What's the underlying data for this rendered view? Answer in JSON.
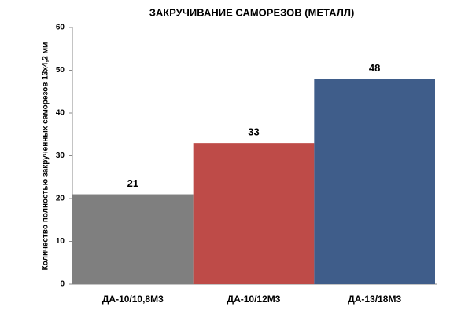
{
  "chart_data": {
    "type": "bar",
    "title": "ЗАКРУЧИВАНИЕ САМОРЕЗОВ (МЕТАЛЛ)",
    "y_label": "Количество полностью закрученных саморезов 13х4,2 мм",
    "categories": [
      "ДА-10/10,8М3",
      "ДА-10/12М3",
      "ДА-13/18М3"
    ],
    "values": [
      21,
      33,
      48
    ],
    "colors": [
      "#7f7f7f",
      "#be4b48",
      "#3f5d8a"
    ],
    "ylim": [
      0,
      60
    ],
    "yticks": [
      0,
      10,
      20,
      30,
      40,
      50,
      60
    ],
    "grid": false,
    "data_labels": true
  }
}
